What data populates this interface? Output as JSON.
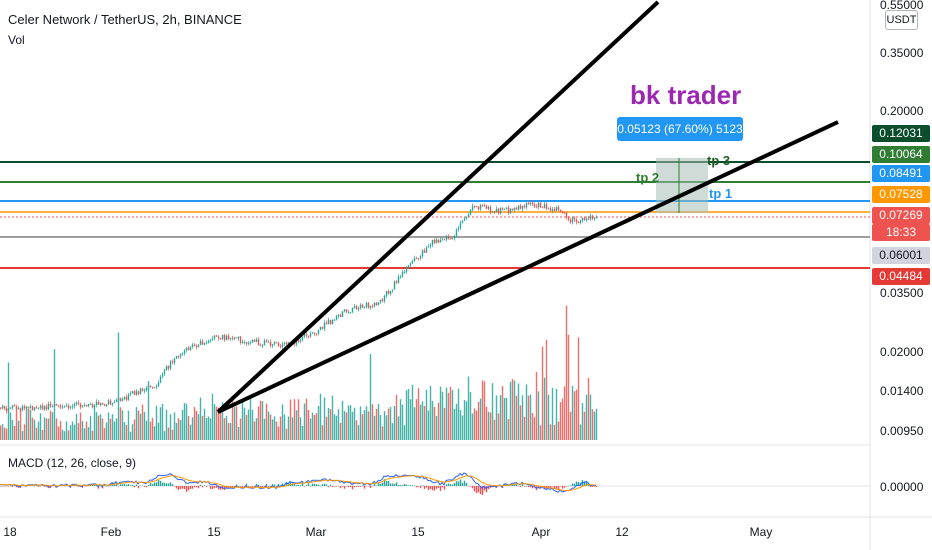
{
  "header": {
    "title": "Celer Network / TetherUS, 2h, BINANCE",
    "vol_label": "Vol"
  },
  "macd_label": "MACD (12, 26, close, 9)",
  "currency_button": "USDT",
  "annotations": {
    "trader_text": "bk trader",
    "measure_text": "0.05123 (67.60%) 5123",
    "tp1": "tp 1",
    "tp2": "tp 2",
    "tp3": "tp 3"
  },
  "price_badges": [
    {
      "text": "0.12031",
      "color": "#0b4d2c"
    },
    {
      "text": "0.10064",
      "color": "#2e7d32"
    },
    {
      "text": "0.08491",
      "color": "#2196f3"
    },
    {
      "text": "0.07528",
      "color": "#ff9800"
    },
    {
      "text": "0.07269",
      "color": "#ef5350"
    },
    {
      "text": "18:33",
      "color": "#ef5350"
    },
    {
      "text": "0.06001",
      "color": "#9e9e9e"
    },
    {
      "text": "0.04484",
      "color": "#e53935"
    }
  ],
  "y_ticks": [
    "0.55000",
    "0.35000",
    "0.20000",
    "0.03500",
    "0.02000",
    "0.01400",
    "0.00950"
  ],
  "macd_tick": "0.00000",
  "x_ticks": [
    "18",
    "Feb",
    "15",
    "Mar",
    "15",
    "Apr",
    "12",
    "May"
  ],
  "colors": {
    "up": "#26a69a",
    "down": "#ef5350",
    "wedge": "#000000",
    "purple": "#9c27b0"
  },
  "chart_data": {
    "type": "candlestick",
    "scale": "log",
    "symbol": "CELRUSDT",
    "interval": "2h",
    "last_price": 0.07269,
    "horizontal_levels": [
      0.10064,
      0.08491,
      0.07528,
      0.06001,
      0.04484
    ],
    "price_path": {
      "dates": [
        "2021-01-15",
        "2021-01-25",
        "2021-02-01",
        "2021-02-07",
        "2021-02-10",
        "2021-02-15",
        "2021-02-20",
        "2021-02-25",
        "2021-03-01",
        "2021-03-05",
        "2021-03-10",
        "2021-03-14",
        "2021-03-17",
        "2021-03-20",
        "2021-03-23",
        "2021-03-27",
        "2021-03-31",
        "2021-04-03",
        "2021-04-06",
        "2021-04-08"
      ],
      "close": [
        0.0115,
        0.0118,
        0.0122,
        0.0145,
        0.0195,
        0.023,
        0.022,
        0.021,
        0.024,
        0.029,
        0.032,
        0.045,
        0.056,
        0.06,
        0.08,
        0.076,
        0.082,
        0.078,
        0.068,
        0.0727
      ]
    },
    "trendlines": [
      {
        "from": [
          "2021-02-16",
          0.0112
        ],
        "to": [
          "2021-04-19",
          0.55
        ]
      },
      {
        "from": [
          "2021-02-16",
          0.0112
        ],
        "to": [
          "2021-05-22",
          0.13
        ]
      }
    ],
    "macd": {
      "fast": 12,
      "slow": 26,
      "source": "close",
      "signal": 9
    }
  }
}
